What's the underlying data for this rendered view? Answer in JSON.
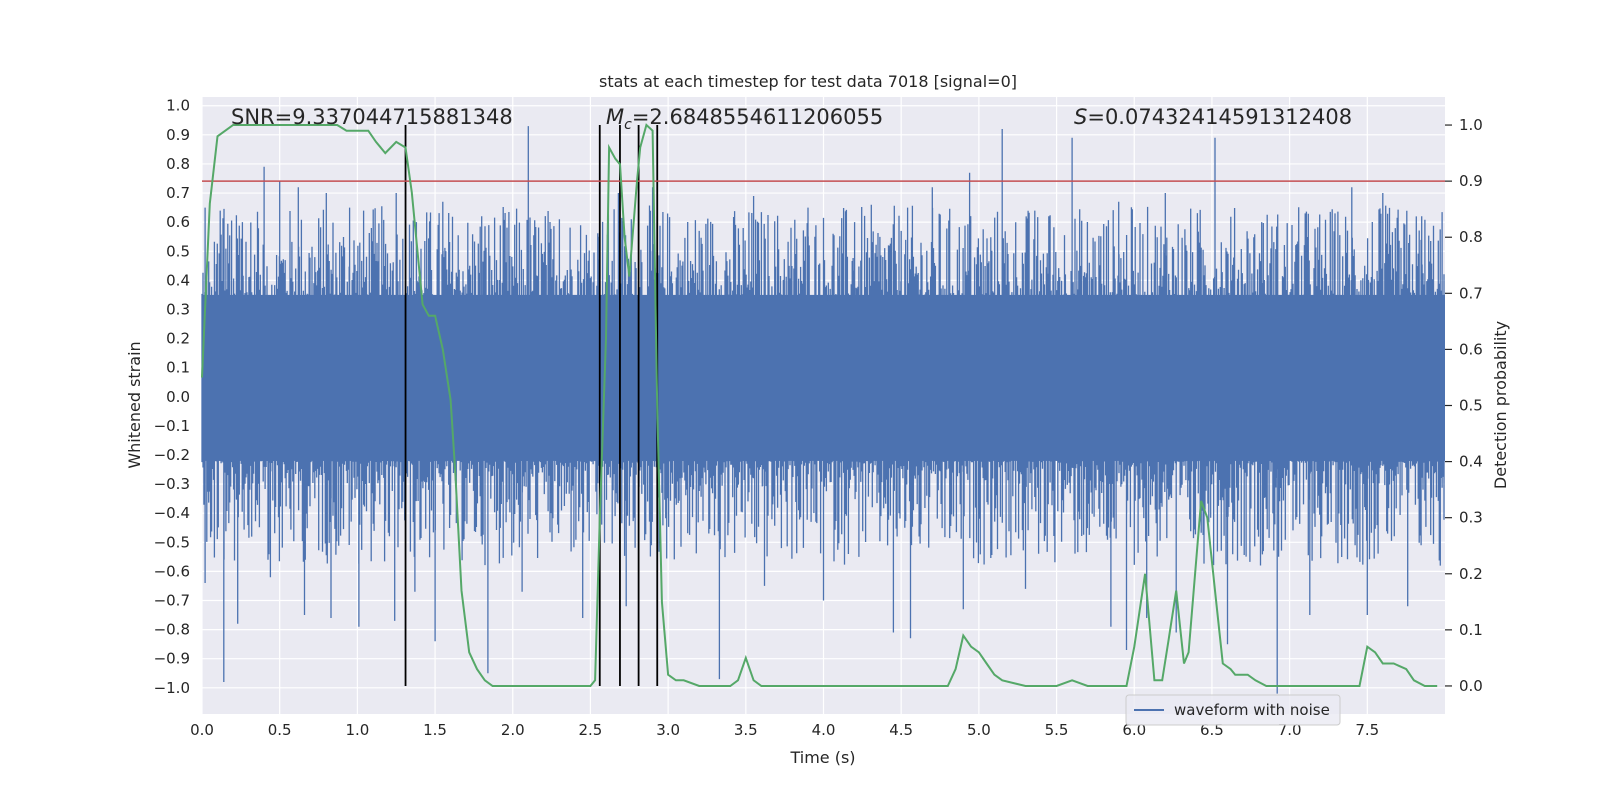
{
  "chart_data": {
    "type": "line",
    "title": "stats at each timestep for test data 7018 [signal=0]",
    "xlabel": "Time (s)",
    "ylabel": "Whitened strain",
    "y2label": "Detection probability",
    "xlim": [
      0,
      8.0
    ],
    "ylim": [
      -1.09,
      1.03
    ],
    "y2lim": [
      -0.05,
      1.05
    ],
    "x_ticks": [
      0.0,
      0.5,
      1.0,
      1.5,
      2.0,
      2.5,
      3.0,
      3.5,
      4.0,
      4.5,
      5.0,
      5.5,
      6.0,
      6.5,
      7.0,
      7.5
    ],
    "x_tick_labels": [
      "0.0",
      "0.5",
      "1.0",
      "1.5",
      "2.0",
      "2.5",
      "3.0",
      "3.5",
      "4.0",
      "4.5",
      "5.0",
      "5.5",
      "6.0",
      "6.5",
      "7.0",
      "7.5"
    ],
    "y_ticks": [
      1.0,
      0.9,
      0.8,
      0.7,
      0.6,
      0.5,
      0.4,
      0.3,
      0.2,
      0.1,
      0.0,
      -0.1,
      -0.2,
      -0.3,
      -0.4,
      -0.5,
      -0.6,
      -0.7,
      -0.8,
      -0.9,
      -1.0
    ],
    "y_tick_labels": [
      "1.0",
      "0.9",
      "0.8",
      "0.7",
      "0.6",
      "0.5",
      "0.4",
      "0.3",
      "0.2",
      "0.1",
      "0.0",
      "−0.1",
      "−0.2",
      "−0.3",
      "−0.4",
      "−0.5",
      "−0.6",
      "−0.7",
      "−0.8",
      "−0.9",
      "−1.0"
    ],
    "y2_ticks": [
      1.0,
      0.9,
      0.8,
      0.7,
      0.6,
      0.5,
      0.4,
      0.3,
      0.2,
      0.1,
      0.0
    ],
    "y2_tick_labels": [
      "1.0",
      "0.9",
      "0.8",
      "0.7",
      "0.6",
      "0.5",
      "0.4",
      "0.3",
      "0.2",
      "0.1",
      "0.0"
    ],
    "grid": true,
    "legend": {
      "placement": "lower-right",
      "entries": [
        "waveform with noise"
      ]
    },
    "annotations": {
      "snr": "SNR=9.337044715881348",
      "mc_symbol": "M",
      "mc_sub": "c",
      "mc_value": "=2.6848554611206055",
      "s_symbol": "S",
      "s_value": "=0.07432414591312408"
    },
    "threshold": 0.9,
    "vertical_lines_x": [
      1.31,
      2.56,
      2.69,
      2.81,
      2.93
    ],
    "waveform": {
      "name": "waveform with noise",
      "note_band": [
        -0.22,
        0.35
      ],
      "peaks": [
        [
          0.02,
          0.65
        ],
        [
          0.14,
          0.55
        ],
        [
          0.26,
          0.6
        ],
        [
          0.4,
          0.79
        ],
        [
          0.5,
          0.74
        ],
        [
          0.62,
          0.72
        ],
        [
          0.8,
          0.7
        ],
        [
          0.95,
          0.65
        ],
        [
          1.09,
          0.58
        ],
        [
          1.25,
          0.7
        ],
        [
          1.38,
          0.6
        ],
        [
          1.55,
          0.67
        ],
        [
          1.8,
          0.62
        ],
        [
          2.1,
          0.93
        ],
        [
          2.3,
          0.61
        ],
        [
          2.55,
          0.55
        ],
        [
          2.68,
          0.7
        ],
        [
          2.9,
          0.72
        ],
        [
          3.2,
          0.57
        ],
        [
          3.55,
          0.69
        ],
        [
          3.9,
          0.65
        ],
        [
          4.2,
          0.6
        ],
        [
          4.5,
          0.57
        ],
        [
          4.7,
          0.72
        ],
        [
          4.94,
          0.77
        ],
        [
          5.15,
          0.92
        ],
        [
          5.45,
          0.62
        ],
        [
          5.6,
          0.89
        ],
        [
          5.9,
          0.67
        ],
        [
          6.2,
          0.7
        ],
        [
          6.52,
          0.89
        ],
        [
          6.82,
          0.6
        ],
        [
          7.1,
          0.63
        ],
        [
          7.4,
          0.72
        ],
        [
          7.6,
          0.7
        ],
        [
          7.85,
          0.62
        ]
      ],
      "troughs": [
        [
          0.02,
          -0.64
        ],
        [
          0.14,
          -0.98
        ],
        [
          0.23,
          -0.78
        ],
        [
          0.44,
          -0.62
        ],
        [
          0.66,
          -0.75
        ],
        [
          0.83,
          -0.76
        ],
        [
          1.01,
          -0.79
        ],
        [
          1.24,
          -0.77
        ],
        [
          1.37,
          -0.67
        ],
        [
          1.5,
          -0.84
        ],
        [
          1.84,
          -0.95
        ],
        [
          2.06,
          -0.67
        ],
        [
          2.45,
          -0.76
        ],
        [
          2.73,
          -0.72
        ],
        [
          3.33,
          -0.97
        ],
        [
          3.62,
          -0.65
        ],
        [
          4.0,
          -0.7
        ],
        [
          4.45,
          -0.81
        ],
        [
          4.56,
          -0.83
        ],
        [
          4.9,
          -0.73
        ],
        [
          5.3,
          -0.66
        ],
        [
          5.85,
          -0.79
        ],
        [
          5.95,
          -0.87
        ],
        [
          6.08,
          -0.76
        ],
        [
          6.27,
          -0.81
        ],
        [
          6.6,
          -0.85
        ],
        [
          6.92,
          -1.02
        ],
        [
          7.13,
          -0.75
        ],
        [
          7.5,
          -0.75
        ],
        [
          7.76,
          -0.72
        ],
        [
          7.97,
          -0.58
        ]
      ]
    },
    "detection_probability": {
      "x": [
        0.0,
        0.05,
        0.1,
        0.2,
        0.3,
        0.4,
        0.5,
        0.6,
        0.7,
        0.8,
        0.87,
        0.93,
        1.0,
        1.07,
        1.12,
        1.18,
        1.25,
        1.31,
        1.35,
        1.42,
        1.46,
        1.5,
        1.55,
        1.6,
        1.63,
        1.67,
        1.72,
        1.77,
        1.82,
        1.87,
        1.95,
        2.1,
        2.3,
        2.4,
        2.5,
        2.53,
        2.56,
        2.6,
        2.62,
        2.66,
        2.69,
        2.72,
        2.75,
        2.8,
        2.82,
        2.86,
        2.9,
        2.93,
        2.96,
        3.0,
        3.05,
        3.1,
        3.2,
        3.3,
        3.4,
        3.45,
        3.5,
        3.55,
        3.6,
        3.8,
        4.0,
        4.3,
        4.5,
        4.7,
        4.8,
        4.85,
        4.9,
        4.95,
        5.0,
        5.05,
        5.1,
        5.15,
        5.3,
        5.5,
        5.6,
        5.7,
        5.85,
        5.95,
        6.0,
        6.07,
        6.13,
        6.18,
        6.22,
        6.27,
        6.32,
        6.35,
        6.43,
        6.47,
        6.52,
        6.57,
        6.62,
        6.65,
        6.73,
        6.78,
        6.85,
        6.92,
        7.0,
        7.3,
        7.45,
        7.5,
        7.55,
        7.6,
        7.67,
        7.75,
        7.8,
        7.87,
        7.95
      ],
      "y": [
        0.55,
        0.86,
        0.98,
        1.0,
        1.0,
        1.0,
        1.0,
        1.0,
        1.0,
        1.0,
        1.0,
        0.99,
        0.99,
        0.99,
        0.97,
        0.95,
        0.97,
        0.96,
        0.88,
        0.68,
        0.66,
        0.66,
        0.6,
        0.51,
        0.38,
        0.17,
        0.06,
        0.03,
        0.01,
        0.0,
        0.0,
        0.0,
        0.0,
        0.0,
        0.0,
        0.01,
        0.3,
        0.62,
        0.96,
        0.94,
        0.93,
        0.8,
        0.73,
        0.9,
        0.96,
        1.0,
        0.99,
        0.5,
        0.15,
        0.02,
        0.01,
        0.01,
        0.0,
        0.0,
        0.0,
        0.01,
        0.05,
        0.01,
        0.0,
        0.0,
        0.0,
        0.0,
        0.0,
        0.0,
        0.0,
        0.03,
        0.09,
        0.07,
        0.06,
        0.04,
        0.02,
        0.01,
        0.0,
        0.0,
        0.01,
        0.0,
        0.0,
        0.0,
        0.07,
        0.2,
        0.01,
        0.01,
        0.08,
        0.17,
        0.04,
        0.06,
        0.33,
        0.3,
        0.17,
        0.04,
        0.03,
        0.02,
        0.02,
        0.01,
        0.0,
        0.0,
        0.0,
        0.0,
        0.0,
        0.07,
        0.06,
        0.04,
        0.04,
        0.03,
        0.01,
        0.0,
        0.0
      ]
    },
    "colors": {
      "background": "#eaeaf2",
      "grid": "#ffffff",
      "waveform": "#4c72b0",
      "probability": "#55a868",
      "threshold": "#c44e52",
      "vlines": "#000000",
      "text": "#262626"
    }
  }
}
